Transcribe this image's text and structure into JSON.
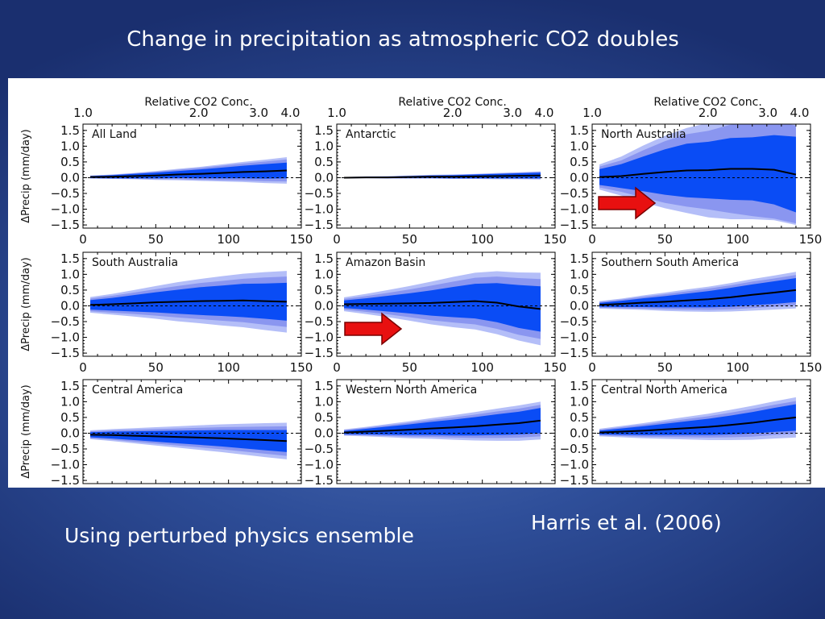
{
  "slide": {
    "title": "Change in precipitation as atmospheric CO2 doubles",
    "subtitle": "Using perturbed physics ensemble",
    "citation": "Harris et al. (2006)"
  },
  "colors": {
    "background": "#2f4f9a",
    "band_outer": "#b4bef8",
    "band_middle": "#8a96f0",
    "band_inner": "#0a4cf5",
    "mean_line": "#000000",
    "arrow": "#e81010"
  },
  "icons": [
    "right-arrow-icon"
  ],
  "chart_data": {
    "type": "area",
    "layout": "3x3 grid of panels",
    "shared": {
      "xlabel": "",
      "ylabel": "ΔPrecip (mm/day)",
      "top_axis_label": "Relative CO2 Conc.",
      "top_axis_ticks": [
        "1.0",
        "2.0",
        "3.0",
        "4.0"
      ],
      "xlim": [
        0,
        150
      ],
      "x_ticks": [
        0,
        50,
        100,
        150
      ],
      "ylim": [
        -1.6,
        1.7
      ],
      "y_tick_labels": [
        "1.5",
        "1.0",
        "0.5",
        "0.0",
        "−0.5",
        "−1.0",
        "−1.5"
      ],
      "y_ticks": [
        1.5,
        1.0,
        0.5,
        0.0,
        -0.5,
        -1.0,
        -1.5
      ],
      "zero_line": "dashed",
      "x": [
        5,
        20,
        35,
        50,
        65,
        80,
        95,
        110,
        125,
        140
      ],
      "band_legend": "",
      "series": [
        {
          "role": "ensemble mean"
        },
        {
          "role": "inner spread band"
        },
        {
          "role": "middle spread band"
        },
        {
          "role": "outer spread band"
        }
      ]
    },
    "panels": [
      {
        "label": "All Land",
        "row": 0,
        "col": 0,
        "arrow": false,
        "mean": [
          0.02,
          0.03,
          0.05,
          0.07,
          0.1,
          0.12,
          0.15,
          0.18,
          0.2,
          0.23
        ],
        "inner": [
          0.03,
          0.05,
          0.07,
          0.09,
          0.11,
          0.14,
          0.17,
          0.2,
          0.23,
          0.25
        ],
        "middle": [
          0.04,
          0.06,
          0.09,
          0.12,
          0.15,
          0.19,
          0.23,
          0.27,
          0.31,
          0.35
        ],
        "outer": [
          0.05,
          0.07,
          0.1,
          0.14,
          0.18,
          0.22,
          0.27,
          0.32,
          0.37,
          0.42
        ]
      },
      {
        "label": "Antarctic",
        "row": 0,
        "col": 1,
        "arrow": false,
        "mean": [
          0.0,
          0.01,
          0.01,
          0.02,
          0.03,
          0.03,
          0.04,
          0.05,
          0.06,
          0.07
        ],
        "inner": [
          0.01,
          0.02,
          0.02,
          0.03,
          0.04,
          0.05,
          0.06,
          0.07,
          0.08,
          0.09
        ],
        "middle": [
          0.02,
          0.02,
          0.03,
          0.04,
          0.05,
          0.06,
          0.07,
          0.08,
          0.1,
          0.11
        ],
        "outer": [
          0.02,
          0.03,
          0.04,
          0.05,
          0.06,
          0.07,
          0.08,
          0.1,
          0.11,
          0.13
        ]
      },
      {
        "label": "North Australia",
        "row": 0,
        "col": 2,
        "arrow": true,
        "mean": [
          0.02,
          0.05,
          0.12,
          0.18,
          0.23,
          0.24,
          0.28,
          0.28,
          0.25,
          0.1
        ],
        "inner": [
          0.25,
          0.38,
          0.55,
          0.72,
          0.85,
          0.9,
          0.98,
          1.0,
          1.1,
          1.2
        ],
        "middle": [
          0.33,
          0.5,
          0.75,
          0.98,
          1.15,
          1.25,
          1.4,
          1.5,
          1.55,
          1.55
        ],
        "outer": [
          0.4,
          0.62,
          0.9,
          1.15,
          1.35,
          1.5,
          1.6,
          1.6,
          1.6,
          1.6
        ]
      },
      {
        "label": "South Australia",
        "row": 1,
        "col": 0,
        "arrow": false,
        "mean": [
          0.03,
          0.05,
          0.08,
          0.11,
          0.13,
          0.15,
          0.16,
          0.17,
          0.15,
          0.13
        ],
        "inner": [
          0.15,
          0.2,
          0.26,
          0.32,
          0.38,
          0.44,
          0.48,
          0.53,
          0.56,
          0.6
        ],
        "middle": [
          0.2,
          0.27,
          0.34,
          0.42,
          0.5,
          0.57,
          0.63,
          0.69,
          0.75,
          0.8
        ],
        "outer": [
          0.25,
          0.33,
          0.42,
          0.52,
          0.62,
          0.7,
          0.78,
          0.85,
          0.92,
          0.98
        ]
      },
      {
        "label": "Amazon Basin",
        "row": 1,
        "col": 1,
        "arrow": true,
        "mean": [
          0.05,
          0.06,
          0.07,
          0.08,
          0.09,
          0.12,
          0.15,
          0.1,
          -0.02,
          -0.1
        ],
        "inner": [
          0.12,
          0.18,
          0.25,
          0.32,
          0.4,
          0.48,
          0.55,
          0.62,
          0.68,
          0.72
        ],
        "middle": [
          0.17,
          0.25,
          0.34,
          0.44,
          0.55,
          0.65,
          0.74,
          0.83,
          0.9,
          0.95
        ],
        "outer": [
          0.22,
          0.32,
          0.43,
          0.55,
          0.68,
          0.8,
          0.9,
          1.0,
          1.08,
          1.15
        ]
      },
      {
        "label": "Southern South America",
        "row": 1,
        "col": 2,
        "arrow": false,
        "mean": [
          0.03,
          0.06,
          0.1,
          0.13,
          0.17,
          0.21,
          0.27,
          0.35,
          0.42,
          0.5
        ],
        "inner": [
          0.06,
          0.1,
          0.14,
          0.18,
          0.22,
          0.26,
          0.3,
          0.33,
          0.36,
          0.38
        ],
        "middle": [
          0.09,
          0.14,
          0.19,
          0.24,
          0.29,
          0.34,
          0.38,
          0.42,
          0.45,
          0.48
        ],
        "outer": [
          0.12,
          0.17,
          0.23,
          0.29,
          0.35,
          0.4,
          0.45,
          0.5,
          0.54,
          0.58
        ]
      },
      {
        "label": "Central America",
        "row": 2,
        "col": 0,
        "arrow": false,
        "mean": [
          -0.05,
          -0.06,
          -0.08,
          -0.1,
          -0.12,
          -0.14,
          -0.16,
          -0.19,
          -0.22,
          -0.25
        ],
        "inner": [
          0.08,
          0.11,
          0.14,
          0.17,
          0.2,
          0.23,
          0.26,
          0.29,
          0.32,
          0.35
        ],
        "middle": [
          0.11,
          0.15,
          0.19,
          0.23,
          0.27,
          0.31,
          0.35,
          0.39,
          0.43,
          0.47
        ],
        "outer": [
          0.14,
          0.19,
          0.24,
          0.29,
          0.34,
          0.39,
          0.44,
          0.49,
          0.54,
          0.58
        ]
      },
      {
        "label": "Western North America",
        "row": 2,
        "col": 1,
        "arrow": false,
        "mean": [
          0.02,
          0.05,
          0.08,
          0.11,
          0.15,
          0.18,
          0.22,
          0.27,
          0.32,
          0.4
        ],
        "inner": [
          0.05,
          0.09,
          0.13,
          0.17,
          0.21,
          0.25,
          0.29,
          0.33,
          0.36,
          0.4
        ],
        "middle": [
          0.08,
          0.12,
          0.17,
          0.22,
          0.27,
          0.32,
          0.37,
          0.42,
          0.46,
          0.5
        ],
        "outer": [
          0.1,
          0.15,
          0.21,
          0.27,
          0.33,
          0.39,
          0.45,
          0.51,
          0.56,
          0.6
        ]
      },
      {
        "label": "Central North America",
        "row": 2,
        "col": 2,
        "arrow": false,
        "mean": [
          0.02,
          0.05,
          0.08,
          0.12,
          0.16,
          0.2,
          0.26,
          0.33,
          0.42,
          0.5
        ],
        "inner": [
          0.06,
          0.1,
          0.14,
          0.18,
          0.22,
          0.26,
          0.3,
          0.34,
          0.38,
          0.42
        ],
        "middle": [
          0.09,
          0.14,
          0.19,
          0.24,
          0.29,
          0.34,
          0.39,
          0.44,
          0.48,
          0.52
        ],
        "outer": [
          0.12,
          0.18,
          0.24,
          0.3,
          0.36,
          0.42,
          0.48,
          0.54,
          0.59,
          0.64
        ]
      }
    ]
  }
}
